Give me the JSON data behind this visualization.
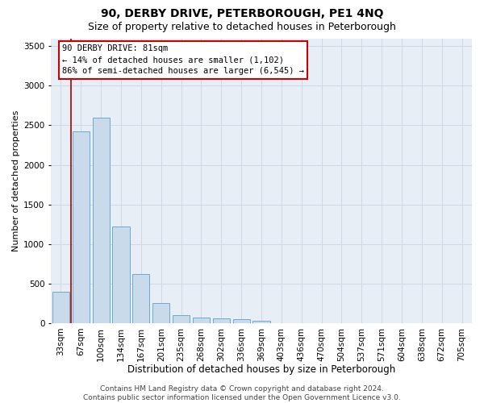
{
  "title1": "90, DERBY DRIVE, PETERBOROUGH, PE1 4NQ",
  "title2": "Size of property relative to detached houses in Peterborough",
  "xlabel": "Distribution of detached houses by size in Peterborough",
  "ylabel": "Number of detached properties",
  "categories": [
    "33sqm",
    "67sqm",
    "100sqm",
    "134sqm",
    "167sqm",
    "201sqm",
    "235sqm",
    "268sqm",
    "302sqm",
    "336sqm",
    "369sqm",
    "403sqm",
    "436sqm",
    "470sqm",
    "504sqm",
    "537sqm",
    "571sqm",
    "604sqm",
    "638sqm",
    "672sqm",
    "705sqm"
  ],
  "values": [
    400,
    2420,
    2600,
    1220,
    620,
    255,
    100,
    65,
    60,
    50,
    30,
    0,
    0,
    0,
    0,
    0,
    0,
    0,
    0,
    0,
    0
  ],
  "bar_color": "#c9daea",
  "bar_edge_color": "#6aaad4",
  "grid_color": "#c8d5e5",
  "bg_color": "#e8eef5",
  "vline_x": 0.5,
  "vline_color": "#aa0000",
  "annotation_text": "90 DERBY DRIVE: 81sqm\n← 14% of detached houses are smaller (1,102)\n86% of semi-detached houses are larger (6,545) →",
  "annotation_box_color": "#ffffff",
  "annotation_box_edge": "#cc0000",
  "ylim": [
    0,
    3600
  ],
  "yticks": [
    0,
    500,
    1000,
    1500,
    2000,
    2500,
    3000,
    3500
  ],
  "footnote": "Contains HM Land Registry data © Crown copyright and database right 2024.\nContains public sector information licensed under the Open Government Licence v3.0.",
  "title1_fontsize": 10,
  "title2_fontsize": 9,
  "xlabel_fontsize": 8.5,
  "ylabel_fontsize": 8,
  "tick_fontsize": 7.5,
  "annot_fontsize": 7.5,
  "footnote_fontsize": 6.5
}
